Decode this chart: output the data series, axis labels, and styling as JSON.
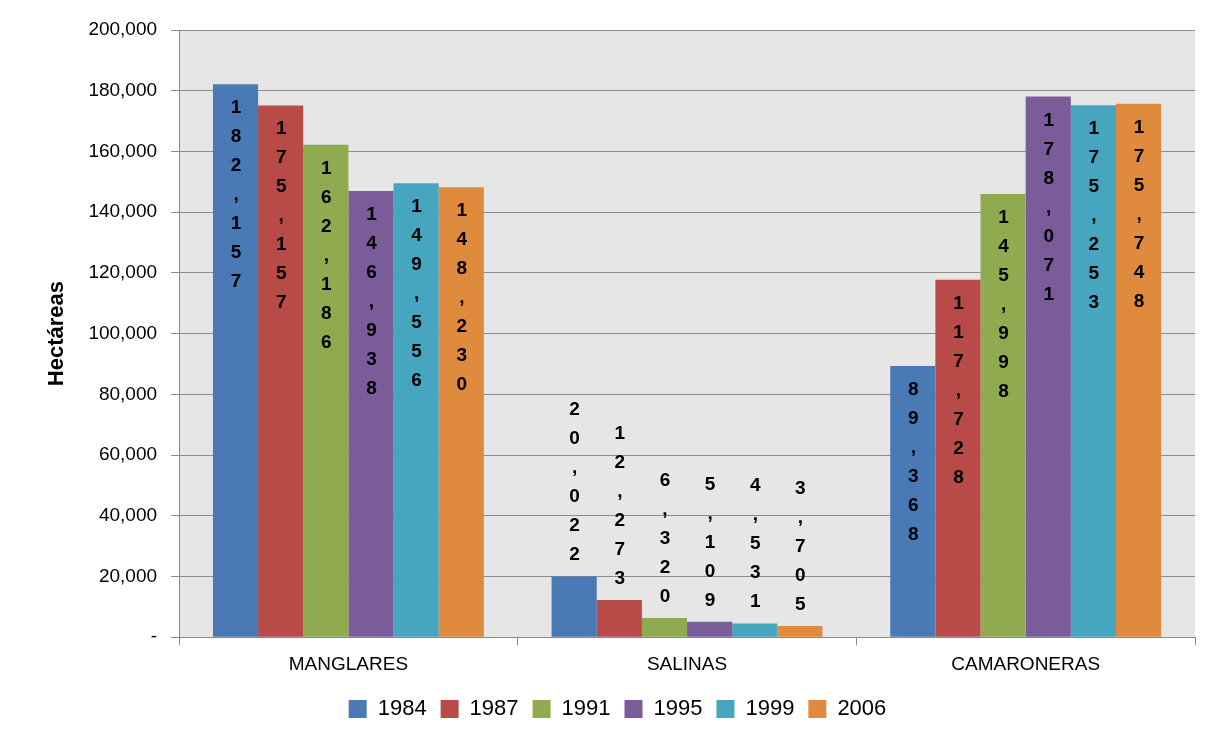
{
  "chart_data": {
    "type": "bar",
    "ylabel": "Hectáreas",
    "categories": [
      "MANGLARES",
      "SALINAS",
      "CAMARONERAS"
    ],
    "series": [
      {
        "name": "1984",
        "color": "#4a7ab5",
        "values": [
          182157,
          20022,
          89368
        ],
        "value_labels": [
          "182,157",
          "20,022",
          "89,368"
        ]
      },
      {
        "name": "1987",
        "color": "#b84a47",
        "values": [
          175157,
          12273,
          117728
        ],
        "value_labels": [
          "175,157",
          "12,273",
          "117,728"
        ]
      },
      {
        "name": "1991",
        "color": "#8faa4f",
        "values": [
          162186,
          6320,
          145998
        ],
        "value_labels": [
          "162,186",
          "6,320",
          "145,998"
        ]
      },
      {
        "name": "1995",
        "color": "#7a5c9a",
        "values": [
          146938,
          5109,
          178071
        ],
        "value_labels": [
          "146,938",
          "5,109",
          "178,071"
        ]
      },
      {
        "name": "1999",
        "color": "#46a5bf",
        "values": [
          149556,
          4531,
          175253
        ],
        "value_labels": [
          "149,556",
          "4,531",
          "175,253"
        ]
      },
      {
        "name": "2006",
        "color": "#e08a3e",
        "values": [
          148230,
          3705,
          175748
        ],
        "value_labels": [
          "148,230",
          "3,705",
          "175,748"
        ]
      }
    ],
    "ylim": [
      0,
      200000
    ],
    "yticks": [
      {
        "value": 0,
        "label": "-"
      },
      {
        "value": 20000,
        "label": "20,000"
      },
      {
        "value": 40000,
        "label": "40,000"
      },
      {
        "value": 60000,
        "label": "60,000"
      },
      {
        "value": 80000,
        "label": "80,000"
      },
      {
        "value": 100000,
        "label": "100,000"
      },
      {
        "value": 120000,
        "label": "120,000"
      },
      {
        "value": 140000,
        "label": "140,000"
      },
      {
        "value": 160000,
        "label": "160,000"
      },
      {
        "value": 180000,
        "label": "180,000"
      },
      {
        "value": 200000,
        "label": "200,000"
      }
    ],
    "grid": "y",
    "legend": "bottom"
  }
}
